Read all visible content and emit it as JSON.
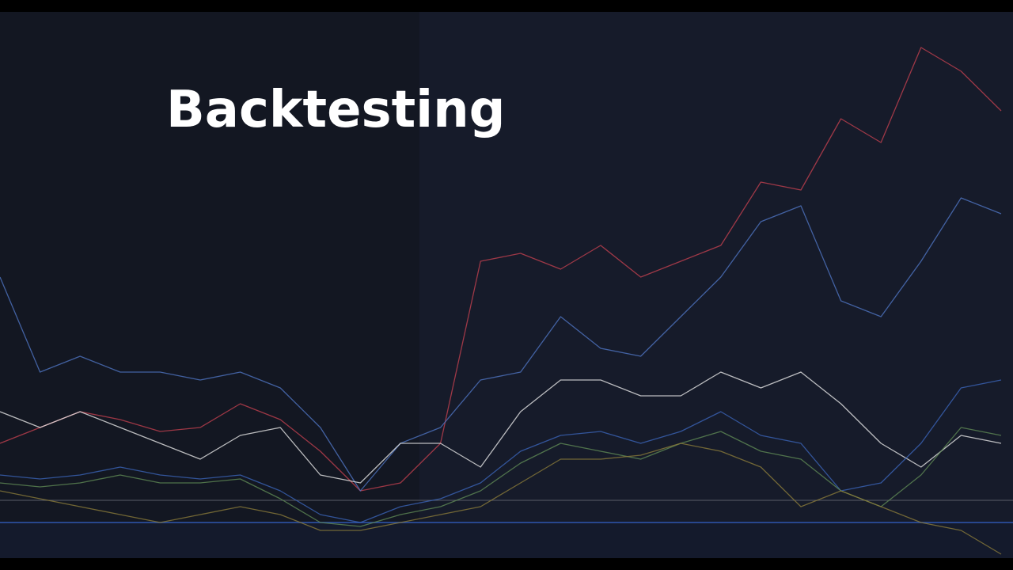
{
  "chart_data": {
    "type": "line",
    "title": "Backtesting",
    "categories": [
      null,
      null,
      null,
      null,
      null,
      null,
      null,
      null,
      null,
      null,
      null,
      null,
      null,
      null,
      null,
      null,
      null,
      null,
      null,
      null,
      null,
      null,
      null,
      null,
      null,
      null
    ],
    "ylim": [
      0,
      690
    ],
    "series": [
      {
        "color": "#c0404f",
        "values": [
          145,
          165,
          185,
          175,
          160,
          165,
          195,
          175,
          135,
          85,
          95,
          145,
          375,
          385,
          365,
          395,
          355,
          375,
          395,
          475,
          465,
          555,
          525,
          645,
          615,
          565
        ]
      },
      {
        "color": "#4f74c2",
        "values": [
          355,
          235,
          255,
          235,
          235,
          225,
          235,
          215,
          165,
          85,
          145,
          165,
          225,
          235,
          305,
          265,
          255,
          305,
          355,
          425,
          445,
          325,
          305,
          375,
          455,
          435
        ]
      },
      {
        "color": "#e6e6e6",
        "values": [
          185,
          165,
          185,
          165,
          145,
          125,
          155,
          165,
          105,
          95,
          145,
          145,
          115,
          185,
          225,
          225,
          205,
          205,
          235,
          215,
          235,
          195,
          145,
          115,
          155,
          145
        ]
      },
      {
        "color": "#3b64b8",
        "values": [
          105,
          100,
          105,
          115,
          105,
          100,
          105,
          85,
          55,
          45,
          65,
          75,
          95,
          135,
          155,
          160,
          145,
          160,
          185,
          155,
          145,
          85,
          95,
          145,
          215,
          225
        ]
      },
      {
        "color": "#5f8a55",
        "values": [
          95,
          90,
          95,
          105,
          95,
          95,
          100,
          75,
          45,
          40,
          55,
          65,
          85,
          120,
          145,
          135,
          125,
          145,
          160,
          135,
          125,
          85,
          65,
          105,
          165,
          155
        ]
      },
      {
        "color": "#8a7a3a",
        "values": [
          85,
          75,
          65,
          55,
          45,
          55,
          65,
          55,
          35,
          35,
          45,
          55,
          65,
          95,
          125,
          125,
          130,
          145,
          135,
          115,
          65,
          85,
          65,
          45,
          35,
          5
        ]
      }
    ]
  }
}
